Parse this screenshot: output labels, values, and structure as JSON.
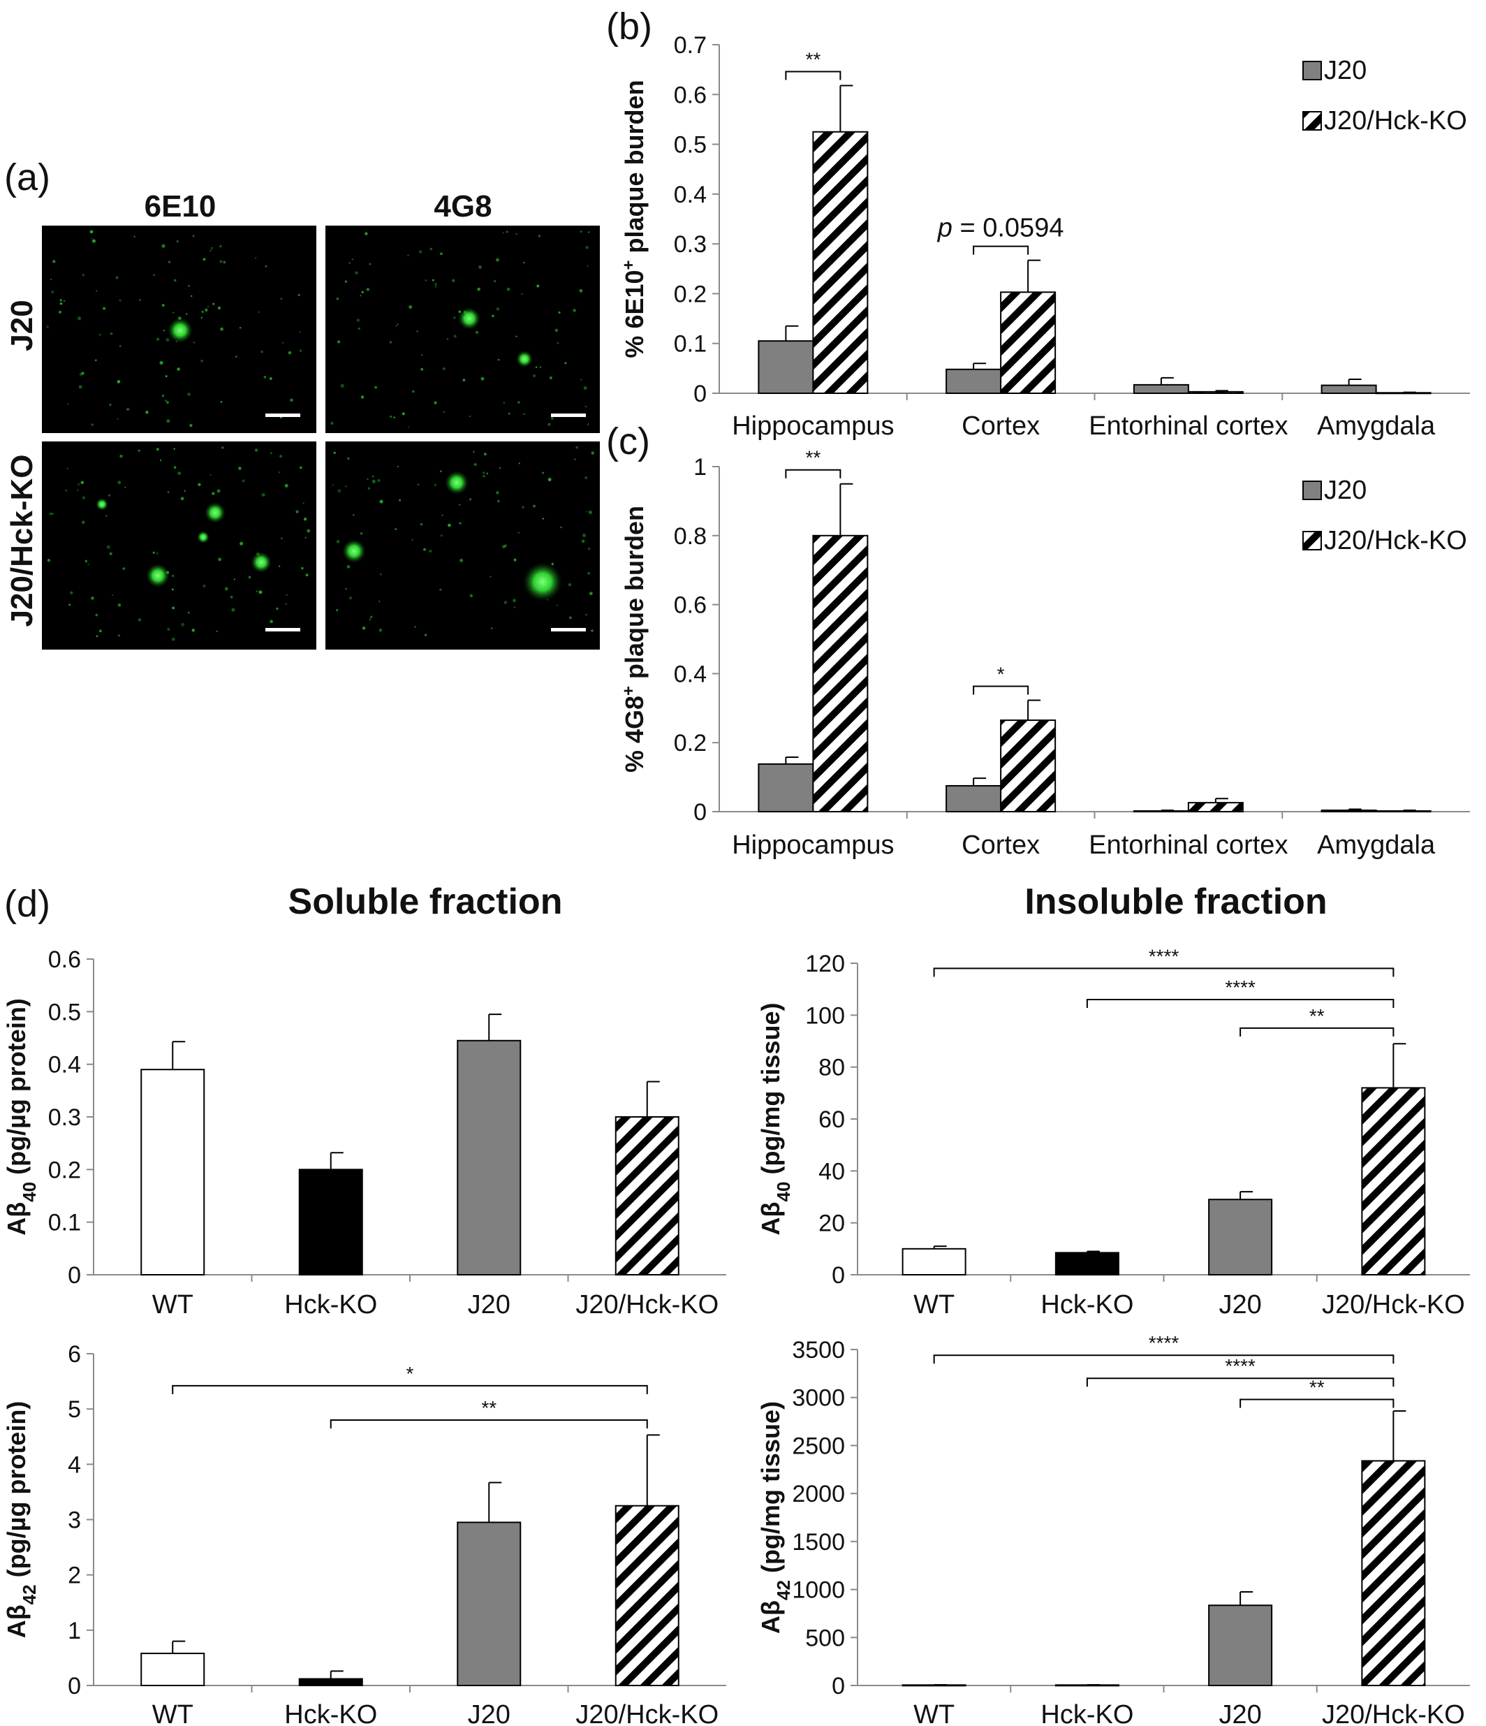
{
  "panel_labels": [
    "(a)",
    "(b)",
    "(c)",
    "(d)"
  ],
  "micrographs": {
    "columns": [
      "6E10",
      "4G8"
    ],
    "rows": [
      "J20",
      "J20/Hck-KO"
    ]
  },
  "titles": {
    "soluble": "Soluble fraction",
    "insoluble": "Insoluble fraction"
  },
  "colors": {
    "J20": "#808080",
    "WT": "#ffffff",
    "Hck-KO": "#000000",
    "hatch": "#000000"
  },
  "chart_data": [
    {
      "id": "b",
      "type": "bar",
      "categories": [
        "Hippocampus",
        "Cortex",
        "Entorhinal cortex",
        "Amygdala"
      ],
      "series": [
        {
          "name": "J20",
          "style": "gray",
          "values": [
            0.105,
            0.048,
            0.017,
            0.016
          ],
          "errors": [
            0.03,
            0.012,
            0.014,
            0.012
          ]
        },
        {
          "name": "J20/Hck-KO",
          "style": "hatch",
          "values": [
            0.525,
            0.203,
            0.003,
            0.001
          ],
          "errors": [
            0.093,
            0.064,
            0.002,
            0.001
          ]
        }
      ],
      "ylabel": "% 6E10⁺ plaque burden",
      "ylim": [
        0,
        0.7
      ],
      "yticks": [
        "0",
        "0.1",
        "0.2",
        "0.3",
        "0.4",
        "0.5",
        "0.6",
        "0.7"
      ],
      "legend": "top-right",
      "annotations": [
        {
          "text": "**",
          "category": 0
        },
        {
          "text": "p = 0.0594",
          "category": 1
        }
      ]
    },
    {
      "id": "c",
      "type": "bar",
      "categories": [
        "Hippocampus",
        "Cortex",
        "Entorhinal cortex",
        "Amygdala"
      ],
      "series": [
        {
          "name": "J20",
          "style": "gray",
          "values": [
            0.138,
            0.075,
            0.002,
            0.004
          ],
          "errors": [
            0.02,
            0.022,
            0.002,
            0.003
          ]
        },
        {
          "name": "J20/Hck-KO",
          "style": "hatch",
          "values": [
            0.8,
            0.265,
            0.026,
            0.002
          ],
          "errors": [
            0.15,
            0.058,
            0.012,
            0.002
          ]
        }
      ],
      "ylabel": "% 4G8⁺ plaque burden",
      "ylim": [
        0,
        1
      ],
      "yticks": [
        "0",
        "0.2",
        "0.4",
        "0.6",
        "0.8",
        "1"
      ],
      "legend": "top-right",
      "annotations": [
        {
          "text": "**",
          "category": 0
        },
        {
          "text": "*",
          "category": 1
        }
      ]
    },
    {
      "id": "d_sol_40",
      "type": "bar",
      "categories": [
        "WT",
        "Hck-KO",
        "J20",
        "J20/Hck-KO"
      ],
      "styles": [
        "white",
        "black",
        "gray",
        "hatch"
      ],
      "values": [
        0.39,
        0.2,
        0.445,
        0.3
      ],
      "errors": [
        0.053,
        0.032,
        0.05,
        0.067
      ],
      "ylabel": "Aβ40 (pg/µg protein)",
      "ylim": [
        0,
        0.6
      ],
      "yticks": [
        "0",
        "0.1",
        "0.2",
        "0.3",
        "0.4",
        "0.5",
        "0.6"
      ],
      "brackets": []
    },
    {
      "id": "d_insol_40",
      "type": "bar",
      "categories": [
        "WT",
        "Hck-KO",
        "J20",
        "J20/Hck-KO"
      ],
      "styles": [
        "white",
        "black",
        "gray",
        "hatch"
      ],
      "values": [
        10,
        8.5,
        29,
        72
      ],
      "errors": [
        1,
        0.5,
        3,
        17
      ],
      "ylabel": "Aβ40 (pg/mg tissue)",
      "ylim": [
        0,
        120
      ],
      "yticks": [
        "0",
        "20",
        "40",
        "60",
        "80",
        "100",
        "120"
      ],
      "brackets": [
        {
          "from": 0,
          "to": 3,
          "text": "****",
          "y": 118
        },
        {
          "from": 1,
          "to": 3,
          "text": "****",
          "y": 106
        },
        {
          "from": 2,
          "to": 3,
          "text": "**",
          "y": 95
        }
      ]
    },
    {
      "id": "d_sol_42",
      "type": "bar",
      "categories": [
        "WT",
        "Hck-KO",
        "J20",
        "J20/Hck-KO"
      ],
      "styles": [
        "white",
        "black",
        "gray",
        "hatch"
      ],
      "values": [
        0.58,
        0.12,
        2.95,
        3.25
      ],
      "errors": [
        0.22,
        0.14,
        0.72,
        1.28
      ],
      "ylabel": "Aβ42 (pg/µg protein)",
      "ylim": [
        0,
        6
      ],
      "yticks": [
        "0",
        "1",
        "2",
        "3",
        "4",
        "5",
        "6"
      ],
      "brackets": [
        {
          "from": 0,
          "to": 3,
          "text": "*",
          "y": 5.42
        },
        {
          "from": 1,
          "to": 3,
          "text": "**",
          "y": 4.8
        }
      ]
    },
    {
      "id": "d_insol_42",
      "type": "bar",
      "categories": [
        "WT",
        "Hck-KO",
        "J20",
        "J20/Hck-KO"
      ],
      "styles": [
        "white",
        "black",
        "gray",
        "hatch"
      ],
      "values": [
        5,
        5,
        835,
        2340
      ],
      "errors": [
        2,
        2,
        140,
        520
      ],
      "ylabel": "Aβ42 (pg/mg tissue)",
      "ylim": [
        0,
        3500
      ],
      "yticks": [
        "0",
        "500",
        "1000",
        "1500",
        "2000",
        "2500",
        "3000",
        "3500"
      ],
      "brackets": [
        {
          "from": 0,
          "to": 3,
          "text": "****",
          "y": 3440
        },
        {
          "from": 1,
          "to": 3,
          "text": "****",
          "y": 3200
        },
        {
          "from": 2,
          "to": 3,
          "text": "**",
          "y": 2980
        }
      ]
    }
  ]
}
